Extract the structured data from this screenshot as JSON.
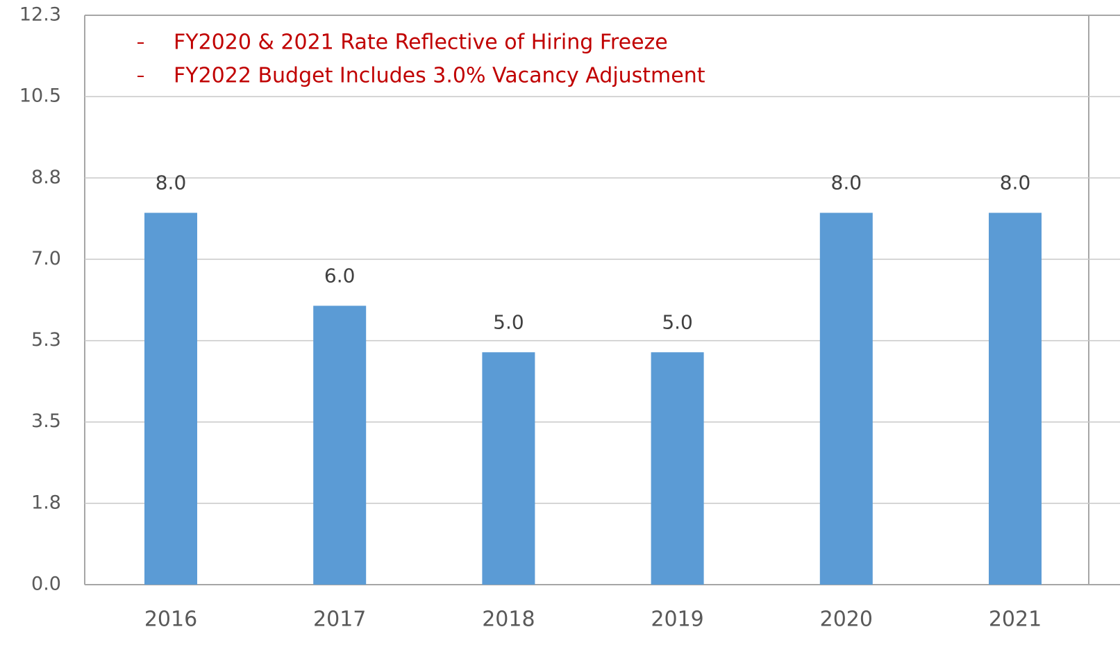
{
  "chart_data": {
    "type": "bar",
    "categories": [
      "2016",
      "2017",
      "2018",
      "2019",
      "2020",
      "2021"
    ],
    "values": [
      8,
      6,
      5,
      5,
      8,
      8
    ],
    "value_labels": [
      "8.0",
      "6.0",
      "5.0",
      "5.0",
      "8.0",
      "8.0"
    ],
    "color": "#5b9bd5",
    "ylim": [
      0,
      12.25
    ],
    "yticks": [
      {
        "value": 0,
        "label": "0.0"
      },
      {
        "value": 1.75,
        "label": "1.8"
      },
      {
        "value": 3.5,
        "label": "3.5"
      },
      {
        "value": 5.25,
        "label": "5.3"
      },
      {
        "value": 7,
        "label": "7.0"
      },
      {
        "value": 8.75,
        "label": "8.8"
      },
      {
        "value": 10.5,
        "label": "10.5"
      },
      {
        "value": 12.25,
        "label": "12.3"
      }
    ],
    "grid": true,
    "annotations": [
      "FY2020 & 2021 Rate Reflective of Hiring Freeze",
      "FY2022 Budget Includes 3.0% Vacancy Adjustment"
    ]
  }
}
